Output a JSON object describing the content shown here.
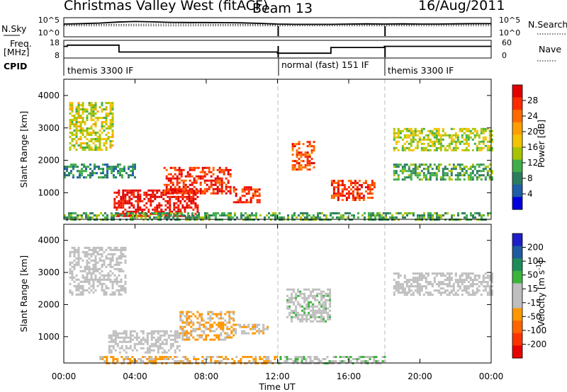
{
  "header": {
    "title": "Christmas Valley West (fitACF)",
    "beam": "Beam 13",
    "date": "16/Aug/2011"
  },
  "top_panels": {
    "nsky_label": "N.Sky",
    "nsky_ticks": [
      "10^5",
      "10^0"
    ],
    "nsearch_label": "N.Search",
    "nsearch_ticks": [
      "10^5",
      "10^0"
    ],
    "freq_label_1": "Freq.",
    "freq_label_2": "[MHz]",
    "freq_ticks": [
      "18",
      "8"
    ],
    "nave_label": "Nave",
    "nave_ticks": [
      "60",
      "0"
    ],
    "cpid_label": "CPID",
    "cpid_segments": [
      {
        "label": "themis 3300 IF",
        "start_hour": 0,
        "end_hour": 12
      },
      {
        "label": "normal (fast) 151 IF",
        "start_hour": 12,
        "end_hour": 18
      },
      {
        "label": "themis 3300 IF",
        "start_hour": 18,
        "end_hour": 24
      }
    ]
  },
  "panels": {
    "y_label": "Slant Range [km]",
    "y_ticks": [
      "4000",
      "3000",
      "2000",
      "1000"
    ],
    "x_ticks": [
      "00:00",
      "04:00",
      "08:00",
      "12:00",
      "16:00",
      "20:00",
      "00:00"
    ],
    "x_label": "Time UT"
  },
  "colorbars": {
    "power": {
      "label": "Power [dB]",
      "ticks": [
        "28",
        "24",
        "20",
        "16",
        "12",
        "8",
        "4"
      ],
      "colors": [
        "#e00000",
        "#ff2a00",
        "#ff6a00",
        "#ff9e00",
        "#f2c400",
        "#a8c400",
        "#3fae4a",
        "#2c7d5e",
        "#1f5ea8",
        "#0000dd"
      ]
    },
    "velocity": {
      "label": "Velocity [m s⁻¹]",
      "label_main": "Velocity [m s",
      "label_sup": "-1",
      "label_end": "]",
      "ticks": [
        "200",
        "100",
        "50",
        "15",
        "-15",
        "-50",
        "-100",
        "-200"
      ],
      "colors": [
        "#1e1ec8",
        "#1e5aa0",
        "#1e8c5a",
        "#3cb43c",
        "#bebebe",
        "#bebebe",
        "#ff9600",
        "#ff6400",
        "#ff3200",
        "#e60000"
      ]
    }
  },
  "chart_data": [
    {
      "type": "line",
      "title": "N.Sky / N.Search",
      "ylabel": "N.Sky",
      "y_scale": "log",
      "ylim": [
        1,
        100000
      ],
      "x_unit": "hours UT",
      "series": [
        {
          "name": "N.Sky",
          "x": [
            0,
            1,
            2,
            3,
            4,
            5,
            6,
            7,
            8,
            9,
            10,
            11,
            12,
            13,
            14,
            15,
            16,
            17,
            18,
            19,
            20,
            21,
            22,
            23,
            24
          ],
          "values": [
            3000,
            4000,
            6000,
            12000,
            18000,
            14000,
            10000,
            9000,
            9000,
            8000,
            7000,
            5000,
            3000,
            2500,
            2500,
            2500,
            3000,
            3500,
            3000,
            3500,
            3000,
            3000,
            3500,
            4000,
            4000
          ]
        },
        {
          "name": "N.Search",
          "x": [
            0,
            6,
            12,
            18,
            24
          ],
          "values": [
            2000,
            3000,
            2000,
            2000,
            2500
          ]
        }
      ]
    },
    {
      "type": "line",
      "title": "Freq / Nave",
      "ylabel": "Freq. [MHz]",
      "ylim": [
        8,
        18
      ],
      "x_unit": "hours UT",
      "series": [
        {
          "name": "Freq",
          "x": [
            0,
            0.2,
            0.2,
            3.1,
            3.1,
            12,
            12,
            15,
            15,
            18,
            18,
            24
          ],
          "values": [
            15,
            15,
            16,
            16,
            10,
            10,
            9,
            9,
            14,
            14,
            15,
            15
          ]
        },
        {
          "name": "Nave",
          "x": [
            0,
            12,
            12,
            18,
            18,
            24
          ],
          "values": [
            33,
            33,
            33,
            33,
            33,
            33
          ]
        }
      ]
    },
    {
      "type": "heatmap",
      "title": "Power [dB]",
      "xlabel": "Time UT",
      "ylabel": "Slant Range [km]",
      "xlim_hours": [
        0,
        24
      ],
      "ylim_km": [
        180,
        4500
      ],
      "color_range": [
        0,
        30
      ],
      "features": [
        {
          "start_hour": 0.3,
          "end_hour": 2.8,
          "range_start_km": 2300,
          "range_end_km": 3800,
          "power_db": 15
        },
        {
          "start_hour": 0,
          "end_hour": 4,
          "range_start_km": 1500,
          "range_end_km": 1900,
          "power_db": 8
        },
        {
          "start_hour": 2.8,
          "end_hour": 7.5,
          "range_start_km": 300,
          "range_end_km": 1100,
          "power_db": 28
        },
        {
          "start_hour": 5.6,
          "end_hour": 9.4,
          "range_start_km": 1000,
          "range_end_km": 1800,
          "power_db": 26
        },
        {
          "start_hour": 9.5,
          "end_hour": 11,
          "range_start_km": 700,
          "range_end_km": 1200,
          "power_db": 26
        },
        {
          "start_hour": 12.8,
          "end_hour": 14,
          "range_start_km": 1700,
          "range_end_km": 2600,
          "power_db": 24
        },
        {
          "start_hour": 15,
          "end_hour": 17.5,
          "range_start_km": 800,
          "range_end_km": 1400,
          "power_db": 25
        },
        {
          "start_hour": 18.5,
          "end_hour": 24,
          "range_start_km": 2300,
          "range_end_km": 3000,
          "power_db": 14
        },
        {
          "start_hour": 18.5,
          "end_hour": 24,
          "range_start_km": 1400,
          "range_end_km": 1900,
          "power_db": 10
        },
        {
          "start_hour": 0,
          "end_hour": 24,
          "range_start_km": 180,
          "range_end_km": 400,
          "power_db": 10
        }
      ]
    },
    {
      "type": "heatmap",
      "title": "Velocity [m s^-1]",
      "xlabel": "Time UT",
      "ylabel": "Slant Range [km]",
      "xlim_hours": [
        0,
        24
      ],
      "ylim_km": [
        180,
        4500
      ],
      "color_range": [
        -250,
        250
      ],
      "features": [
        {
          "start_hour": 0.3,
          "end_hour": 3.5,
          "range_start_km": 2300,
          "range_end_km": 3800,
          "velocity": 0
        },
        {
          "start_hour": 2.5,
          "end_hour": 6.5,
          "range_start_km": 500,
          "range_end_km": 1200,
          "velocity": 0
        },
        {
          "start_hour": 6.5,
          "end_hour": 9.6,
          "range_start_km": 900,
          "range_end_km": 1800,
          "velocity": -60
        },
        {
          "start_hour": 9.6,
          "end_hour": 11.5,
          "range_start_km": 1100,
          "range_end_km": 1400,
          "velocity": -40
        },
        {
          "start_hour": 12.5,
          "end_hour": 15,
          "range_start_km": 1500,
          "range_end_km": 2500,
          "velocity": 20
        },
        {
          "start_hour": 18.5,
          "end_hour": 24,
          "range_start_km": 2300,
          "range_end_km": 3000,
          "velocity": 0
        },
        {
          "start_hour": 2,
          "end_hour": 12,
          "range_start_km": 180,
          "range_end_km": 400,
          "velocity": -60
        },
        {
          "start_hour": 12,
          "end_hour": 18,
          "range_start_km": 180,
          "range_end_km": 400,
          "velocity": 30
        }
      ]
    }
  ]
}
